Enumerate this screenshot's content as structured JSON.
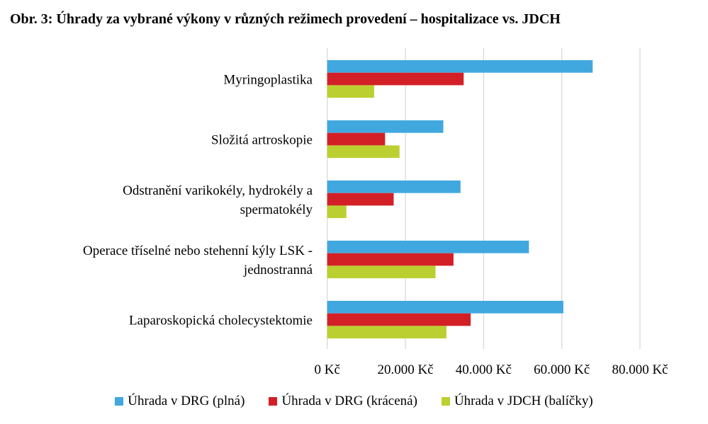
{
  "chart_data": {
    "type": "bar",
    "orientation": "horizontal",
    "title": "Obr. 3: Úhrady za vybrané výkony v různých režimech provedení – hospitalizace vs. JDCH",
    "categories": [
      "Myringoplastika",
      "Složitá artroskopie",
      "Odstranění varikokély, hydrokély a spermatokély",
      "Operace tříselné nebo stehenní kýly LSK - jednostranná",
      "Laparoskopická cholecystektomie"
    ],
    "category_lines": [
      [
        "Myringoplastika"
      ],
      [
        "Složitá artroskopie"
      ],
      [
        "Odstranění varikokély, hydrokély a",
        "spermatokély"
      ],
      [
        "Operace tříselné nebo stehenní kýly LSK -",
        "jednostranná"
      ],
      [
        "Laparoskopická cholecystektomie"
      ]
    ],
    "series": [
      {
        "name": "Úhrada v DRG (plná)",
        "color": "#41a8df",
        "values": [
          67900,
          29700,
          34100,
          51600,
          60400
        ]
      },
      {
        "name": "Úhrada v DRG (krácená)",
        "color": "#d32027",
        "values": [
          34900,
          14800,
          17000,
          32300,
          36700
        ]
      },
      {
        "name": "Úhrada v JDCH (balíčky)",
        "color": "#bccf31",
        "values": [
          12000,
          18500,
          4900,
          27700,
          30500
        ]
      }
    ],
    "xlim": [
      0,
      80000
    ],
    "xticks": [
      0,
      20000,
      40000,
      60000,
      80000
    ],
    "xtick_labels": [
      "0 Kč",
      "20.000 Kč",
      "40.000 Kč",
      "60.000 Kč",
      "80.000 Kč"
    ],
    "grid": true,
    "legend_position": "bottom"
  }
}
